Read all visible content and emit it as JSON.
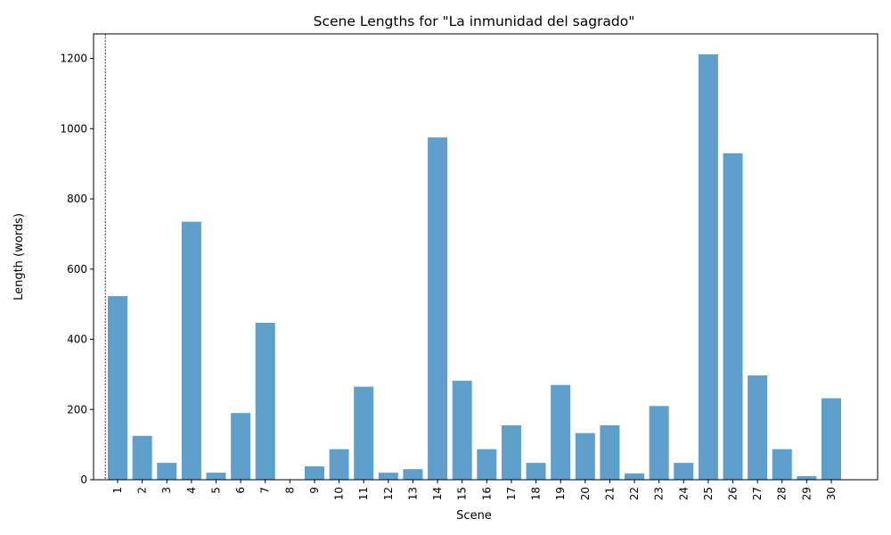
{
  "chart_data": {
    "type": "bar",
    "title": "Scene Lengths for \"La inmunidad del sagrado\"",
    "xlabel": "Scene",
    "ylabel": "Length (words)",
    "ylim": [
      0,
      1270
    ],
    "yticks": [
      0,
      200,
      400,
      600,
      800,
      1000,
      1200
    ],
    "categories": [
      "1",
      "2",
      "3",
      "4",
      "5",
      "6",
      "7",
      "8",
      "9",
      "10",
      "11",
      "12",
      "13",
      "14",
      "15",
      "16",
      "17",
      "18",
      "19",
      "20",
      "21",
      "22",
      "23",
      "24",
      "25",
      "26",
      "27",
      "28",
      "29",
      "30"
    ],
    "values": [
      523,
      125,
      48,
      735,
      20,
      190,
      447,
      0,
      38,
      87,
      265,
      20,
      30,
      975,
      282,
      87,
      155,
      48,
      270,
      133,
      155,
      18,
      210,
      48,
      1212,
      930,
      297,
      87,
      10,
      232
    ],
    "bar_color": "#5f9fcc",
    "marker_line": {
      "position": "before-first-category",
      "style": "dashed"
    }
  }
}
